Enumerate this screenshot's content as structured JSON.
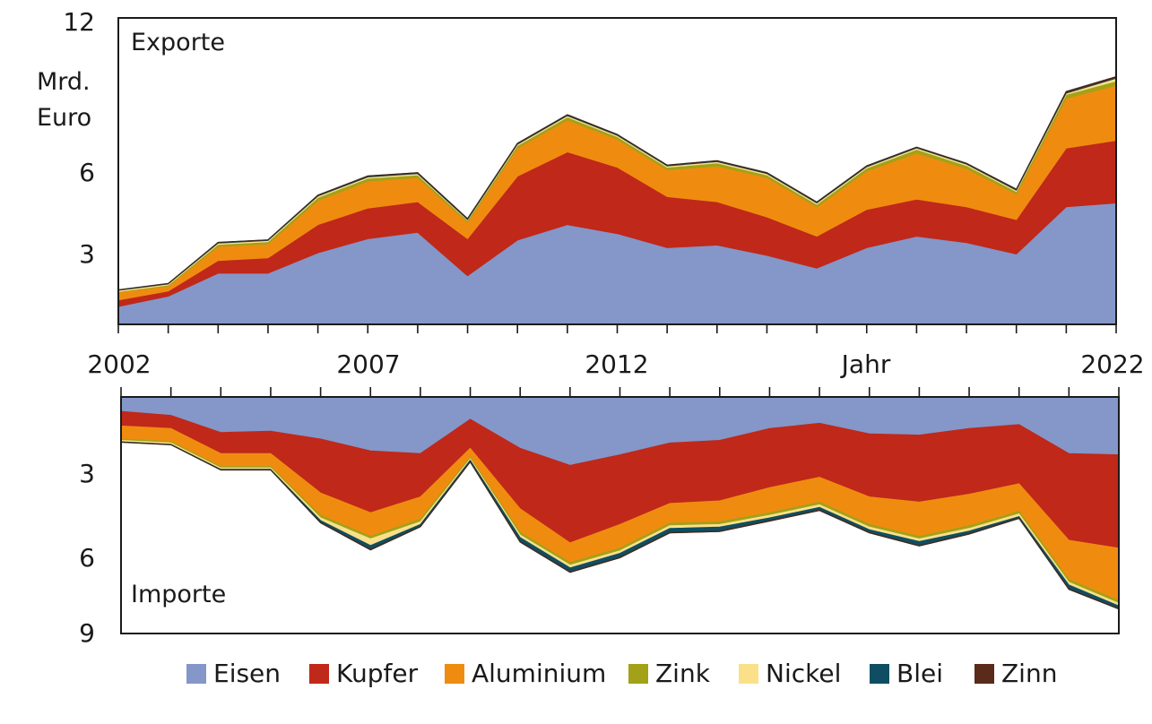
{
  "chart_data": [
    {
      "type": "area",
      "title": "Exporte",
      "ylabel": "Mrd. Euro",
      "ylabel_lines": [
        "Mrd.",
        "Euro"
      ],
      "xlabel": "Jahr",
      "ylim": [
        0,
        12
      ],
      "yticks": [
        3,
        6,
        12
      ],
      "x": [
        2002,
        2003,
        2004,
        2005,
        2006,
        2007,
        2008,
        2009,
        2010,
        2011,
        2012,
        2013,
        2014,
        2015,
        2016,
        2017,
        2018,
        2019,
        2020,
        2021,
        2022
      ],
      "stacked": true,
      "series": [
        {
          "name": "Eisen",
          "values": [
            0.7,
            1.1,
            2.0,
            2.0,
            2.8,
            3.35,
            3.6,
            1.9,
            3.3,
            3.9,
            3.55,
            3.0,
            3.1,
            2.7,
            2.2,
            3.0,
            3.45,
            3.2,
            2.75,
            4.6,
            4.75
          ]
        },
        {
          "name": "Kupfer",
          "values": [
            0.25,
            0.2,
            0.5,
            0.6,
            1.1,
            1.2,
            1.2,
            1.45,
            2.5,
            2.85,
            2.6,
            2.0,
            1.7,
            1.5,
            1.25,
            1.5,
            1.45,
            1.4,
            1.35,
            2.3,
            2.45
          ]
        },
        {
          "name": "Aluminium",
          "values": [
            0.3,
            0.2,
            0.55,
            0.55,
            0.95,
            1.05,
            0.95,
            0.65,
            1.1,
            1.25,
            1.1,
            1.05,
            1.4,
            1.55,
            1.15,
            1.5,
            1.8,
            1.5,
            1.0,
            1.95,
            2.15
          ]
        },
        {
          "name": "Zink",
          "values": [
            0.03,
            0.04,
            0.08,
            0.08,
            0.12,
            0.12,
            0.1,
            0.07,
            0.1,
            0.12,
            0.1,
            0.1,
            0.12,
            0.1,
            0.1,
            0.12,
            0.15,
            0.12,
            0.1,
            0.15,
            0.18
          ]
        },
        {
          "name": "Nickel",
          "values": [
            0.05,
            0.04,
            0.05,
            0.05,
            0.05,
            0.05,
            0.05,
            0.03,
            0.05,
            0.05,
            0.05,
            0.05,
            0.05,
            0.05,
            0.05,
            0.05,
            0.05,
            0.05,
            0.05,
            0.05,
            0.1
          ]
        },
        {
          "name": "Blei",
          "values": [
            0.01,
            0.01,
            0.02,
            0.02,
            0.02,
            0.02,
            0.02,
            0.02,
            0.02,
            0.02,
            0.02,
            0.02,
            0.02,
            0.02,
            0.02,
            0.02,
            0.02,
            0.02,
            0.02,
            0.02,
            0.02
          ]
        },
        {
          "name": "Zinn",
          "values": [
            0.01,
            0.01,
            0.01,
            0.01,
            0.02,
            0.02,
            0.02,
            0.02,
            0.02,
            0.02,
            0.02,
            0.02,
            0.02,
            0.02,
            0.02,
            0.02,
            0.02,
            0.02,
            0.02,
            0.05,
            0.05
          ]
        }
      ]
    },
    {
      "type": "area",
      "title": "Importe",
      "ylim": [
        0,
        9
      ],
      "yticks": [
        3,
        6,
        9
      ],
      "inverted_y": true,
      "x": [
        2002,
        2003,
        2004,
        2005,
        2006,
        2007,
        2008,
        2009,
        2010,
        2011,
        2012,
        2013,
        2014,
        2015,
        2016,
        2017,
        2018,
        2019,
        2020,
        2021,
        2022
      ],
      "stacked": true,
      "series": [
        {
          "name": "Eisen",
          "values": [
            0.55,
            0.7,
            1.35,
            1.3,
            1.6,
            2.05,
            2.15,
            0.85,
            1.95,
            2.6,
            2.2,
            1.75,
            1.65,
            1.2,
            1.0,
            1.4,
            1.45,
            1.2,
            1.05,
            2.15,
            2.2
          ]
        },
        {
          "name": "Kupfer",
          "values": [
            0.55,
            0.5,
            0.8,
            0.85,
            2.05,
            2.35,
            1.65,
            1.1,
            2.3,
            2.95,
            2.65,
            2.3,
            2.3,
            2.25,
            2.05,
            2.4,
            2.55,
            2.5,
            2.25,
            3.3,
            3.55
          ]
        },
        {
          "name": "Aluminium",
          "values": [
            0.5,
            0.5,
            0.5,
            0.5,
            0.85,
            0.9,
            0.85,
            0.35,
            0.9,
            0.75,
            0.9,
            0.75,
            0.8,
            0.95,
            0.95,
            1.05,
            1.3,
            1.2,
            1.05,
            1.5,
            2.0
          ]
        },
        {
          "name": "Zink",
          "values": [
            0.05,
            0.05,
            0.05,
            0.05,
            0.1,
            0.1,
            0.1,
            0.05,
            0.1,
            0.1,
            0.1,
            0.1,
            0.1,
            0.1,
            0.1,
            0.1,
            0.1,
            0.1,
            0.1,
            0.1,
            0.1
          ]
        },
        {
          "name": "Nickel",
          "values": [
            0.05,
            0.05,
            0.05,
            0.05,
            0.1,
            0.25,
            0.1,
            0.05,
            0.1,
            0.1,
            0.1,
            0.1,
            0.1,
            0.1,
            0.1,
            0.1,
            0.1,
            0.1,
            0.1,
            0.1,
            0.1
          ]
        },
        {
          "name": "Blei",
          "values": [
            0.01,
            0.01,
            0.02,
            0.02,
            0.07,
            0.15,
            0.07,
            0.05,
            0.15,
            0.15,
            0.15,
            0.15,
            0.15,
            0.1,
            0.1,
            0.1,
            0.15,
            0.1,
            0.05,
            0.15,
            0.1
          ]
        },
        {
          "name": "Zinn",
          "values": [
            0.01,
            0.01,
            0.01,
            0.01,
            0.02,
            0.02,
            0.02,
            0.02,
            0.02,
            0.02,
            0.02,
            0.02,
            0.02,
            0.02,
            0.02,
            0.02,
            0.02,
            0.02,
            0.02,
            0.02,
            0.02
          ]
        }
      ]
    }
  ],
  "x_tick_labels": [
    "2002",
    "2007",
    "2012",
    "Jahr",
    "2022"
  ],
  "legend": [
    {
      "name": "Eisen",
      "color": "#8497c8"
    },
    {
      "name": "Kupfer",
      "color": "#c0281a"
    },
    {
      "name": "Aluminium",
      "color": "#ef8c10"
    },
    {
      "name": "Zink",
      "color": "#a3a118"
    },
    {
      "name": "Nickel",
      "color": "#fbe08a"
    },
    {
      "name": "Blei",
      "color": "#0f4e62"
    },
    {
      "name": "Zinn",
      "color": "#5a2a1a"
    }
  ]
}
